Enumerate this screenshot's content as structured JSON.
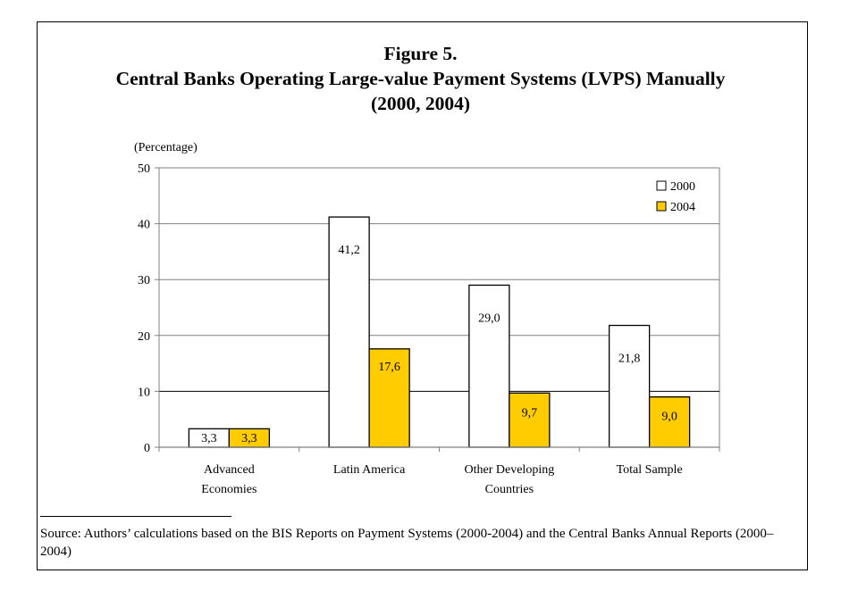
{
  "figure": {
    "title_line1": "Figure 5.",
    "title_line2": "Central Banks Operating Large-value Payment Systems (LVPS) Manually",
    "title_line3": "(2000, 2004)",
    "source": "Source: Authors’ calculations based on the BIS Reports on Payment Systems (2000-2004) and the Central Banks Annual Reports (2000–2004)"
  },
  "chart_data": {
    "type": "bar",
    "title": "Central Banks Operating Large-value Payment Systems (LVPS) Manually (2000, 2004)",
    "xlabel": "",
    "ylabel": "(Percentage)",
    "ylim": [
      0,
      50
    ],
    "yticks": [
      0,
      10,
      20,
      30,
      40,
      50
    ],
    "grid": true,
    "legend_position": "top-right",
    "categories": [
      [
        "Advanced",
        "Economies"
      ],
      [
        "Latin America"
      ],
      [
        "Other Developing",
        "Countries"
      ],
      [
        "Total Sample"
      ]
    ],
    "series": [
      {
        "name": "2000",
        "color": "#ffffff",
        "values": [
          3.3,
          41.2,
          29.0,
          21.8
        ],
        "labels": [
          "3,3",
          "41,2",
          "29,0",
          "21,8"
        ]
      },
      {
        "name": "2004",
        "color": "#ffcc00",
        "values": [
          3.3,
          17.6,
          9.7,
          9.0
        ],
        "labels": [
          "3,3",
          "17,6",
          "9,7",
          "9,0"
        ]
      }
    ]
  }
}
